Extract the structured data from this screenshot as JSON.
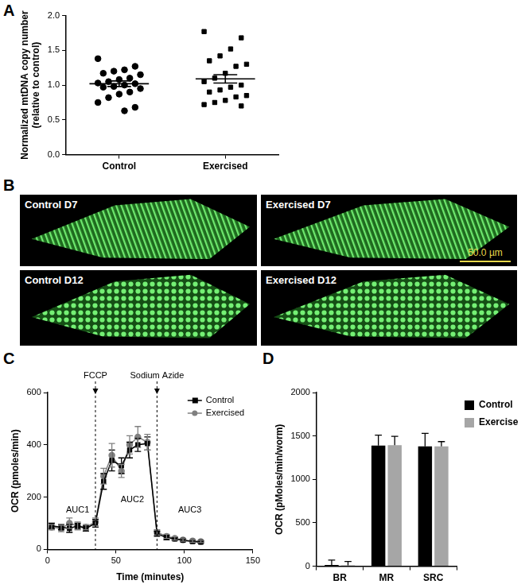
{
  "chart_data": [
    {
      "panel": "A",
      "type": "scatter",
      "y_label": [
        "Normalized mtDNA copy number",
        "(relative to control)"
      ],
      "series": [
        {
          "name": "Control",
          "color": "#000000",
          "marker": "circle",
          "values": [
            1.38,
            1.27,
            1.22,
            1.2,
            1.17,
            1.15,
            1.1,
            1.08,
            1.05,
            1.03,
            1.02,
            1.0,
            0.98,
            0.97,
            0.95,
            0.9,
            0.87,
            0.82,
            0.75,
            0.68,
            0.63
          ],
          "mean": 1.02,
          "sem": 0.04
        },
        {
          "name": "Exercised",
          "color": "#000000",
          "marker": "square",
          "values": [
            1.77,
            1.68,
            1.52,
            1.42,
            1.35,
            1.3,
            1.27,
            1.17,
            1.1,
            1.05,
            1.0,
            0.97,
            0.93,
            0.9,
            0.85,
            0.83,
            0.78,
            0.75,
            0.72,
            0.7
          ],
          "mean": 1.09,
          "sem": 0.06
        }
      ],
      "ylim": [
        0,
        2
      ],
      "yticks": [
        {
          "value": 0,
          "label": "0.0"
        },
        {
          "value": 0.5,
          "label": "0.5"
        },
        {
          "value": 1,
          "label": "1.0"
        },
        {
          "value": 1.5,
          "label": "1.5"
        },
        {
          "value": 2,
          "label": "2.0"
        }
      ],
      "grid": false
    },
    {
      "panel": "C",
      "type": "line",
      "x_label": "Time (minutes)",
      "y_label": "OCR (pmoles/min)",
      "x": [
        3,
        10,
        16,
        22,
        28,
        35,
        41,
        47,
        54,
        60,
        66,
        73,
        80,
        87,
        93,
        99,
        106,
        112
      ],
      "series": [
        {
          "name": "Control",
          "color": "#000000",
          "marker": "square",
          "values": [
            90,
            85,
            80,
            90,
            80,
            100,
            260,
            340,
            320,
            380,
            400,
            405,
            60,
            45,
            40,
            35,
            30,
            28
          ],
          "error": [
            10,
            10,
            15,
            10,
            10,
            15,
            30,
            40,
            30,
            30,
            25,
            25,
            10,
            8,
            6,
            5,
            5,
            4
          ]
        },
        {
          "name": "Exercised",
          "color": "#808080",
          "marker": "circle",
          "values": [
            85,
            80,
            100,
            90,
            85,
            105,
            280,
            360,
            300,
            400,
            430,
            410,
            65,
            50,
            42,
            36,
            32,
            30
          ],
          "error": [
            10,
            12,
            20,
            15,
            10,
            15,
            30,
            45,
            25,
            35,
            40,
            30,
            10,
            8,
            6,
            5,
            5,
            4
          ]
        }
      ],
      "xlim": [
        0,
        150
      ],
      "xticks": [
        0,
        50,
        100,
        150
      ],
      "ylim": [
        0,
        600
      ],
      "yticks": [
        0,
        200,
        400,
        600
      ],
      "grid": false,
      "legend": "upper right",
      "annotations": [
        {
          "text": "FCCP",
          "x": 35
        },
        {
          "text": "Sodium Azide",
          "x": 80
        },
        {
          "text": "AUC1",
          "x": 22,
          "y": 150
        },
        {
          "text": "AUC2",
          "x": 62,
          "y": 190
        },
        {
          "text": "AUC3",
          "x": 104,
          "y": 150
        }
      ]
    },
    {
      "panel": "D",
      "type": "bar",
      "y_label": "OCR (pMoles/min/worm)",
      "categories": [
        "BR",
        "MR",
        "SRC"
      ],
      "series": [
        {
          "name": "Control",
          "color": "#000000",
          "values": [
            15,
            1390,
            1380
          ],
          "error": [
            55,
            120,
            150
          ]
        },
        {
          "name": "Exercised",
          "color": "#a6a6a6",
          "values": [
            10,
            1395,
            1380
          ],
          "error": [
            45,
            100,
            55
          ]
        }
      ],
      "ylim": [
        0,
        2000
      ],
      "yticks": [
        0,
        500,
        1000,
        1500,
        2000
      ],
      "grid": false,
      "legend": "right"
    }
  ],
  "image_panel": {
    "panel": "B",
    "images": [
      {
        "label": "Control D7"
      },
      {
        "label": "Exercised D7"
      },
      {
        "label": "Control D12"
      },
      {
        "label": "Exercised D12"
      }
    ],
    "scale_bar": "50.0 µm"
  }
}
